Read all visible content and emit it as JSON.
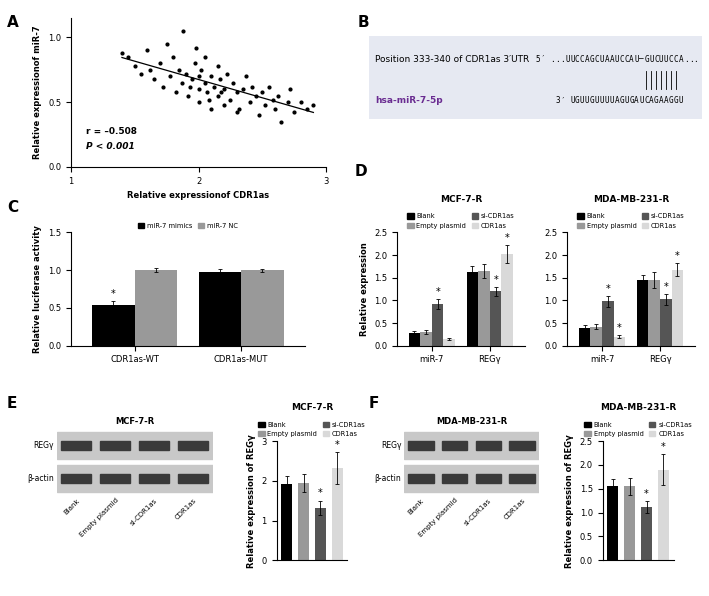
{
  "chart_data": [
    {
      "panel": "A",
      "type": "scatter",
      "color": "#000000",
      "x": [
        1.4,
        1.45,
        1.5,
        1.55,
        1.6,
        1.62,
        1.65,
        1.7,
        1.72,
        1.75,
        1.78,
        1.8,
        1.82,
        1.85,
        1.87,
        1.88,
        1.9,
        1.92,
        1.95,
        1.97,
        2.0,
        2.0,
        2.02,
        2.05,
        2.07,
        2.1,
        2.1,
        2.12,
        2.15,
        2.17,
        2.2,
        2.2,
        2.22,
        2.25,
        2.27,
        2.3,
        2.32,
        2.35,
        2.37,
        2.4,
        2.42,
        2.45,
        2.47,
        2.5,
        2.52,
        2.55,
        2.58,
        2.6,
        2.62,
        2.65,
        2.7,
        2.72,
        2.75,
        2.8,
        2.85,
        2.9,
        1.98,
        2.05,
        1.93,
        2.15,
        2.3,
        2.0,
        2.08,
        2.18
      ],
      "y": [
        0.88,
        0.85,
        0.78,
        0.72,
        0.9,
        0.75,
        0.68,
        0.8,
        0.62,
        0.95,
        0.7,
        0.85,
        0.58,
        0.75,
        0.65,
        1.05,
        0.72,
        0.55,
        0.68,
        0.8,
        0.6,
        0.5,
        0.75,
        0.65,
        0.58,
        0.7,
        0.45,
        0.62,
        0.55,
        0.68,
        0.6,
        0.48,
        0.72,
        0.52,
        0.65,
        0.58,
        0.45,
        0.6,
        0.7,
        0.5,
        0.62,
        0.55,
        0.4,
        0.58,
        0.48,
        0.62,
        0.52,
        0.45,
        0.55,
        0.35,
        0.5,
        0.6,
        0.42,
        0.5,
        0.45,
        0.48,
        0.92,
        0.85,
        0.62,
        0.78,
        0.42,
        0.7,
        0.52,
        0.58
      ],
      "xlabel": "Relative expressionof CDR1as",
      "ylabel": "Relative expressionof miR-7",
      "xlim": [
        1,
        3
      ],
      "xticks": [
        1,
        2,
        3
      ],
      "ylim": [
        0,
        1.15
      ],
      "yticks": [
        {
          "value": 0,
          "label": "0.0"
        },
        {
          "value": 0.5,
          "label": "0.5"
        },
        {
          "value": 1.0,
          "label": "1.0"
        }
      ],
      "annotations": [
        "r = –0.508",
        "P < 0.001"
      ]
    },
    {
      "panel": "C",
      "type": "bar",
      "categories": [
        "CDR1as-WT",
        "CDR1as-MUT"
      ],
      "series": [
        {
          "name": "miR-7 mimics",
          "color": "#000000",
          "values": [
            0.54,
            0.97
          ],
          "errors": [
            0.05,
            0.05
          ],
          "significance": [
            "*",
            null
          ]
        },
        {
          "name": "miR-7 NC",
          "color": "#999999",
          "values": [
            1.0,
            1.0
          ],
          "errors": [
            0.03,
            0.02
          ],
          "significance": [
            null,
            null
          ]
        }
      ],
      "ylabel": "Relative luciferase activity",
      "legend": "lower center",
      "ylim": [
        0,
        1.5
      ],
      "yticks": [
        {
          "value": 0,
          "label": "0.0"
        },
        {
          "value": 0.5,
          "label": "0.5"
        },
        {
          "value": 1.0,
          "label": "1.0"
        },
        {
          "value": 1.5,
          "label": "1.5"
        }
      ]
    },
    {
      "panel": "D",
      "type": "bar",
      "title": "MCF-7-R",
      "categories": [
        "miR-7",
        "REGγ"
      ],
      "series": [
        {
          "name": "Blank",
          "color": "#000000",
          "values": [
            0.28,
            1.62
          ],
          "errors": [
            0.04,
            0.15
          ],
          "significance": [
            null,
            null
          ]
        },
        {
          "name": "Empty plasmid",
          "color": "#999999",
          "values": [
            0.3,
            1.65
          ],
          "errors": [
            0.05,
            0.15
          ],
          "significance": [
            null,
            null
          ]
        },
        {
          "name": "si-CDR1as",
          "color": "#555555",
          "values": [
            0.92,
            1.2
          ],
          "errors": [
            0.1,
            0.1
          ],
          "significance": [
            "*",
            "*"
          ]
        },
        {
          "name": "CDR1as",
          "color": "#d9d9d9",
          "values": [
            0.15,
            2.02
          ],
          "errors": [
            0.02,
            0.2
          ],
          "significance": [
            null,
            "*"
          ]
        }
      ],
      "ylabel": "Relative expression",
      "legend": "lower center",
      "ylim": [
        0,
        2.5
      ],
      "yticks": [
        {
          "value": 0,
          "label": "0.0"
        },
        {
          "value": 0.5,
          "label": "0.5"
        },
        {
          "value": 1.0,
          "label": "1.0"
        },
        {
          "value": 1.5,
          "label": "1.5"
        },
        {
          "value": 2.0,
          "label": "2.0"
        },
        {
          "value": 2.5,
          "label": "2.5"
        }
      ]
    },
    {
      "type": "bar",
      "title": "MDA-MB-231-R",
      "categories": [
        "miR-7",
        "REGγ"
      ],
      "series": [
        {
          "name": "Blank",
          "color": "#000000",
          "values": [
            0.4,
            1.45
          ],
          "errors": [
            0.05,
            0.12
          ],
          "significance": [
            null,
            null
          ]
        },
        {
          "name": "Empty plasmid",
          "color": "#999999",
          "values": [
            0.42,
            1.45
          ],
          "errors": [
            0.05,
            0.18
          ],
          "significance": [
            null,
            null
          ]
        },
        {
          "name": "si-CDR1as",
          "color": "#555555",
          "values": [
            0.98,
            1.02
          ],
          "errors": [
            0.12,
            0.12
          ],
          "significance": [
            "*",
            "*"
          ]
        },
        {
          "name": "CDR1as",
          "color": "#d9d9d9",
          "values": [
            0.2,
            1.68
          ],
          "errors": [
            0.04,
            0.15
          ],
          "significance": [
            "*",
            "*"
          ]
        }
      ],
      "legend": "lower center",
      "ylim": [
        0,
        2.5
      ],
      "yticks": [
        {
          "value": 0,
          "label": "0.0"
        },
        {
          "value": 0.5,
          "label": "0.5"
        },
        {
          "value": 1.0,
          "label": "1.0"
        },
        {
          "value": 1.5,
          "label": "1.5"
        },
        {
          "value": 2.0,
          "label": "2.0"
        },
        {
          "value": 2.5,
          "label": "2.5"
        }
      ]
    },
    {
      "type": "bar",
      "title": "MCF-7-R",
      "categories": [
        "Blank",
        "Empty plasmid",
        "si-CDR1as",
        "CDR1as"
      ],
      "colors": [
        "#000000",
        "#999999",
        "#555555",
        "#d9d9d9"
      ],
      "values": [
        1.92,
        1.95,
        1.32,
        2.32
      ],
      "errors": [
        0.2,
        0.22,
        0.18,
        0.4
      ],
      "significance": [
        null,
        null,
        "*",
        "*"
      ],
      "ylabel": "Relative expression of REGγ",
      "legend": "lower center",
      "tick_labels": "y",
      "ylim": [
        0,
        3
      ],
      "yticks": [
        0,
        1,
        2,
        3
      ]
    },
    {
      "type": "bar",
      "title": "MDA-MB-231-R",
      "categories": [
        "Blank",
        "Empty plasmid",
        "si-CDR1as",
        "CDR1as"
      ],
      "colors": [
        "#000000",
        "#999999",
        "#555555",
        "#d9d9d9"
      ],
      "values": [
        1.55,
        1.55,
        1.12,
        1.9
      ],
      "errors": [
        0.15,
        0.18,
        0.12,
        0.32
      ],
      "significance": [
        null,
        null,
        "*",
        "*"
      ],
      "ylabel": "Relative expression of REGγ",
      "legend": "lower center",
      "tick_labels": "y",
      "ylim": [
        0,
        2.5
      ],
      "yticks": [
        {
          "value": 0,
          "label": "0.0"
        },
        {
          "value": 0.5,
          "label": "0.5"
        },
        {
          "value": 1.0,
          "label": "1.0"
        },
        {
          "value": 1.5,
          "label": "1.5"
        },
        {
          "value": 2.0,
          "label": "2.0"
        },
        {
          "value": 2.5,
          "label": "2.5"
        }
      ]
    }
  ],
  "diagram": {
    "panel": "B",
    "header": "Position 333-340 of CDR1as 3′UTR",
    "top_strand": "5′ ...UUCCAGCUAAUCCAU–GUCUUCCA...",
    "bottom_label": "hsa-miR-7-5p",
    "bottom_strand": "3′ UGUUGUUUUAGUGAUCAGAAGGU"
  },
  "blots": [
    {
      "panel": "E",
      "title": "MCF-7-R",
      "rows": [
        "REGγ",
        "β-actin"
      ],
      "lanes": [
        "Blank",
        "Empty plasmid",
        "si-CDR1as",
        "CDR1as"
      ]
    },
    {
      "panel": "F",
      "title": "MDA-MB-231-R",
      "rows": [
        "REGγ",
        "β-actin"
      ],
      "lanes": [
        "Blank",
        "Empty plasmid",
        "si-CDR1as",
        "CDR1as"
      ]
    }
  ]
}
